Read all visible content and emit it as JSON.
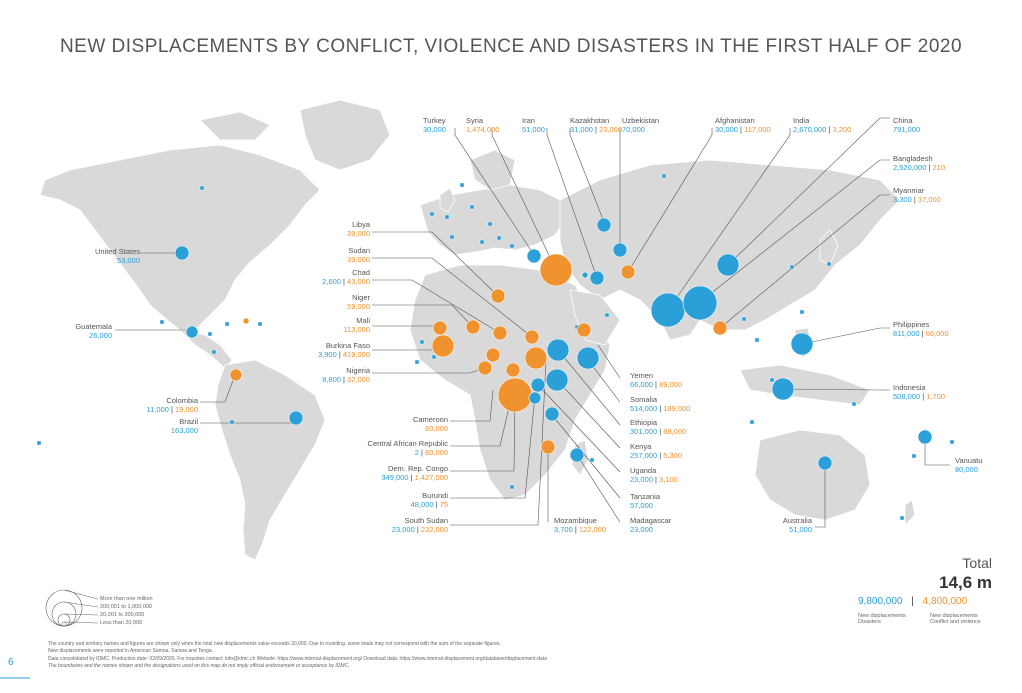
{
  "title": "NEW DISPLACEMENTS BY CONFLICT, VIOLENCE AND DISASTERS IN THE FIRST HALF OF 2020",
  "colors": {
    "disasters": "#2a9fd8",
    "conflict": "#f0922e",
    "land": "#d9d9d9",
    "line": "#555555"
  },
  "labels": [
    {
      "id": "turkey",
      "name": "Turkey",
      "disasters": "30,000",
      "conflict": ""
    },
    {
      "id": "syria",
      "name": "Syria",
      "disasters": "",
      "conflict": "1,474,000"
    },
    {
      "id": "iran",
      "name": "Iran",
      "disasters": "51,000",
      "conflict": ""
    },
    {
      "id": "kazakhstan",
      "name": "Kazakhstan",
      "disasters": "31,000",
      "conflict": "23,000"
    },
    {
      "id": "uzbekistan",
      "name": "Uzbekistan",
      "disasters": "70,000",
      "conflict": ""
    },
    {
      "id": "afghanistan",
      "name": "Afghanistan",
      "disasters": "30,000",
      "conflict": "117,000"
    },
    {
      "id": "india",
      "name": "India",
      "disasters": "2,670,000",
      "conflict": "3,200"
    },
    {
      "id": "china",
      "name": "China",
      "disasters": "791,000",
      "conflict": ""
    },
    {
      "id": "bangladesh",
      "name": "Bangladesh",
      "disasters": "2,520,000",
      "conflict": "210"
    },
    {
      "id": "myanmar",
      "name": "Myanmar",
      "disasters": "3,300",
      "conflict": "37,000"
    },
    {
      "id": "philippines",
      "name": "Philippines",
      "disasters": "811,000",
      "conflict": "66,000"
    },
    {
      "id": "indonesia",
      "name": "Indonesia",
      "disasters": "508,000",
      "conflict": "1,700"
    },
    {
      "id": "vanuatu",
      "name": "Vanuatu",
      "disasters": "80,000",
      "conflict": ""
    },
    {
      "id": "australia",
      "name": "Australia",
      "disasters": "51,000",
      "conflict": ""
    },
    {
      "id": "usa",
      "name": "United States",
      "disasters": "53,000",
      "conflict": ""
    },
    {
      "id": "guatemala",
      "name": "Guatemala",
      "disasters": "26,000",
      "conflict": ""
    },
    {
      "id": "colombia",
      "name": "Colombia",
      "disasters": "11,000",
      "conflict": "19,000"
    },
    {
      "id": "brazil",
      "name": "Brazil",
      "disasters": "163,000",
      "conflict": ""
    },
    {
      "id": "libya",
      "name": "Libya",
      "disasters": "",
      "conflict": "39,000"
    },
    {
      "id": "sudan",
      "name": "Sudan",
      "disasters": "",
      "conflict": "39,000"
    },
    {
      "id": "chad",
      "name": "Chad",
      "disasters": "2,600",
      "conflict": "43,000"
    },
    {
      "id": "niger",
      "name": "Niger",
      "disasters": "",
      "conflict": "59,000"
    },
    {
      "id": "mali",
      "name": "Mali",
      "disasters": "",
      "conflict": "113,000"
    },
    {
      "id": "burkina",
      "name": "Burkina Faso",
      "disasters": "3,900",
      "conflict": "419,000"
    },
    {
      "id": "nigeria",
      "name": "Nigeria",
      "disasters": "8,800",
      "conflict": "32,000"
    },
    {
      "id": "cameroon",
      "name": "Cameroon",
      "disasters": "",
      "conflict": "80,000"
    },
    {
      "id": "car",
      "name": "Central African Republic",
      "disasters": "2",
      "conflict": "80,000"
    },
    {
      "id": "drc",
      "name": "Dem. Rep. Congo",
      "disasters": "349,000",
      "conflict": "1,427,000"
    },
    {
      "id": "burundi",
      "name": "Burundi",
      "disasters": "48,000",
      "conflict": "75"
    },
    {
      "id": "ssudan",
      "name": "South Sudan",
      "disasters": "23,000",
      "conflict": "232,000"
    },
    {
      "id": "mozambique",
      "name": "Mozambique",
      "disasters": "3,700",
      "conflict": "122,000"
    },
    {
      "id": "madagascar",
      "name": "Madagascar",
      "disasters": "23,000",
      "conflict": ""
    },
    {
      "id": "tanzania",
      "name": "Tanzania",
      "disasters": "57,000",
      "conflict": ""
    },
    {
      "id": "uganda",
      "name": "Uganda",
      "disasters": "23,000",
      "conflict": "3,100"
    },
    {
      "id": "kenya",
      "name": "Kenya",
      "disasters": "257,000",
      "conflict": "5,300"
    },
    {
      "id": "ethiopia",
      "name": "Ethiopia",
      "disasters": "301,000",
      "conflict": "68,000"
    },
    {
      "id": "somalia",
      "name": "Somalia",
      "disasters": "514,000",
      "conflict": "189,000"
    },
    {
      "id": "yemen",
      "name": "Yemen",
      "disasters": "66,000",
      "conflict": "89,000"
    }
  ],
  "total": {
    "heading": "Total",
    "value": "14,6 m",
    "disasters_value": "9,800,000",
    "separator": "|",
    "conflict_value": "4,800,000",
    "disasters_caption_1": "New displacements",
    "disasters_caption_2": "Disasters",
    "conflict_caption_1": "New displacements",
    "conflict_caption_2": "Conflict and violence"
  },
  "size_legend": [
    "More than one million",
    "200,001 to 1,000,000",
    "20,001 to 200,000",
    "Less than 20,000"
  ],
  "footnotes": [
    "The country and territory names and figures are shown only when the total new displacements value exceeds 20,000. Due to rounding, some totals may not correspond with the sum of the separate figures.",
    "New displacements were reported in American Samoa, Samoa and Tonga.",
    "Data consolidated by IDMC. Production date: 02/09/2020. For inquiries contact: info@idmc.ch Website: https://www.internal-displacement.org/ Download data: https://www.internal-displacement.org/database/displacement-data",
    "The boundaries and the names shown and the designations used on this map do not imply official endorsement or acceptance by IDMC."
  ],
  "page_number": "6"
}
